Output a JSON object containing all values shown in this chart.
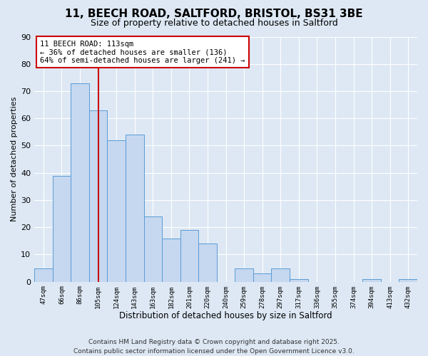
{
  "title": "11, BEECH ROAD, SALTFORD, BRISTOL, BS31 3BE",
  "subtitle": "Size of property relative to detached houses in Saltford",
  "xlabel": "Distribution of detached houses by size in Saltford",
  "ylabel": "Number of detached properties",
  "bins": [
    "47sqm",
    "66sqm",
    "86sqm",
    "105sqm",
    "124sqm",
    "143sqm",
    "163sqm",
    "182sqm",
    "201sqm",
    "220sqm",
    "240sqm",
    "259sqm",
    "278sqm",
    "297sqm",
    "317sqm",
    "336sqm",
    "355sqm",
    "374sqm",
    "394sqm",
    "413sqm",
    "432sqm"
  ],
  "values": [
    5,
    39,
    73,
    63,
    52,
    54,
    24,
    16,
    19,
    14,
    0,
    5,
    3,
    5,
    1,
    0,
    0,
    0,
    1,
    0,
    1
  ],
  "bar_color": "#c5d8f0",
  "bar_edge_color": "#5b9bd5",
  "ylim": [
    0,
    90
  ],
  "yticks": [
    0,
    10,
    20,
    30,
    40,
    50,
    60,
    70,
    80,
    90
  ],
  "vline_color": "#cc0000",
  "vline_pos": 3.0,
  "annotation_title": "11 BEECH ROAD: 113sqm",
  "annotation_line1": "← 36% of detached houses are smaller (136)",
  "annotation_line2": "64% of semi-detached houses are larger (241) →",
  "annotation_box_color": "#ffffff",
  "annotation_box_edgecolor": "#cc0000",
  "footer_line1": "Contains HM Land Registry data © Crown copyright and database right 2025.",
  "footer_line2": "Contains public sector information licensed under the Open Government Licence v3.0.",
  "background_color": "#dde8f4",
  "plot_bg_color": "#dde8f4",
  "title_fontsize": 11,
  "subtitle_fontsize": 9,
  "footer_fontsize": 6.5,
  "annotation_fontsize": 7.5,
  "xlabel_fontsize": 8.5,
  "ylabel_fontsize": 8
}
